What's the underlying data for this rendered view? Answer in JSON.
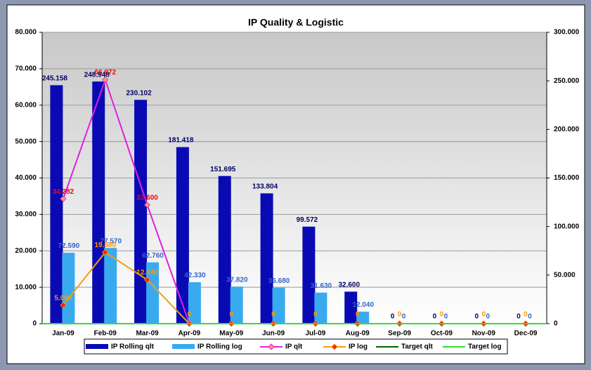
{
  "chart_data": {
    "type": "bar-line",
    "title": "IP Quality & Logistic",
    "categories": [
      "Jan-09",
      "Feb-09",
      "Mar-09",
      "Apr-09",
      "May-09",
      "Jun-09",
      "Jul-09",
      "Aug-09",
      "Sep-09",
      "Oct-09",
      "Nov-09",
      "Dec-09"
    ],
    "ylim": [
      0,
      80
    ],
    "yticks": [
      0,
      {
        "value": 10,
        "label": "10.000"
      },
      {
        "value": 20,
        "label": "20.000"
      },
      {
        "value": 30,
        "label": "30.000"
      },
      {
        "value": 40,
        "label": "40.000"
      },
      {
        "value": 50,
        "label": "50.000"
      },
      {
        "value": 60,
        "label": "60.000"
      },
      {
        "value": 70,
        "label": "70.000"
      },
      {
        "value": 80,
        "label": "80.000"
      }
    ],
    "y2lim": [
      0,
      300
    ],
    "y2ticks": [
      0,
      {
        "value": 50,
        "label": "50.000"
      },
      {
        "value": 100,
        "label": "100.000"
      },
      {
        "value": 150,
        "label": "150.000"
      },
      {
        "value": 200,
        "label": "200.000"
      },
      {
        "value": 250,
        "label": "250.000"
      },
      {
        "value": 300,
        "label": "300.000"
      }
    ],
    "grid": true,
    "legend": "bottom",
    "series": [
      {
        "name": "IP Rolling qlt",
        "type": "bar",
        "axis": "y2",
        "color": "#0a0ab4",
        "label_color": "#000066",
        "values": [
          245.158,
          248.948,
          230.102,
          181.418,
          151.695,
          133.804,
          99.572,
          32.6,
          0,
          0,
          0,
          0
        ],
        "value_labels": [
          "245.158",
          "248.948",
          "230.102",
          "181.418",
          "151.695",
          "133.804",
          "99.572",
          "32.600",
          "0",
          "0",
          "0",
          "0"
        ]
      },
      {
        "name": "IP Rolling log",
        "type": "bar",
        "axis": "y2",
        "color": "#3aaaf0",
        "label_color": "#3366cc",
        "values": [
          72.59,
          77.57,
          62.76,
          42.33,
          37.82,
          36.68,
          31.63,
          12.04,
          0,
          0,
          0,
          0
        ],
        "value_labels": [
          "72.590",
          "77.570",
          "62.760",
          "42.330",
          "37.820",
          "36.680",
          "31.630",
          "12.040",
          "0",
          "0",
          "0",
          "0"
        ]
      },
      {
        "name": "IP qlt",
        "type": "line",
        "color": "#e020e0",
        "marker_color": "#f5a060",
        "label_color": "#ff0000",
        "values": [
          34.282,
          66.972,
          32.6,
          0,
          0,
          0,
          0,
          0,
          0,
          0,
          0,
          0
        ],
        "value_labels": [
          "34.282",
          "66.972",
          "32.600",
          null,
          null,
          null,
          null,
          null,
          null,
          null,
          null,
          null
        ]
      },
      {
        "name": "IP log",
        "type": "line",
        "color": "#f0a010",
        "marker_color": "#ff2000",
        "label_color": "#ff9900",
        "values": [
          5.08,
          19.58,
          12.04,
          0,
          0,
          0,
          0,
          0,
          0,
          0,
          0,
          0
        ],
        "value_labels": [
          "5.080",
          "19.580",
          "12.040",
          "0",
          "0",
          "0",
          "0",
          "0",
          "0",
          "0",
          "0",
          "0"
        ]
      },
      {
        "name": "Target qlt",
        "type": "line",
        "color": "#006600",
        "values": [
          0,
          0,
          0,
          0,
          0,
          0,
          0,
          0,
          0,
          0,
          0,
          0
        ]
      },
      {
        "name": "Target log",
        "type": "line",
        "color": "#33dd33",
        "values": [
          0,
          0,
          0,
          0,
          0,
          0,
          0,
          0,
          0,
          0,
          0,
          0
        ]
      }
    ]
  }
}
